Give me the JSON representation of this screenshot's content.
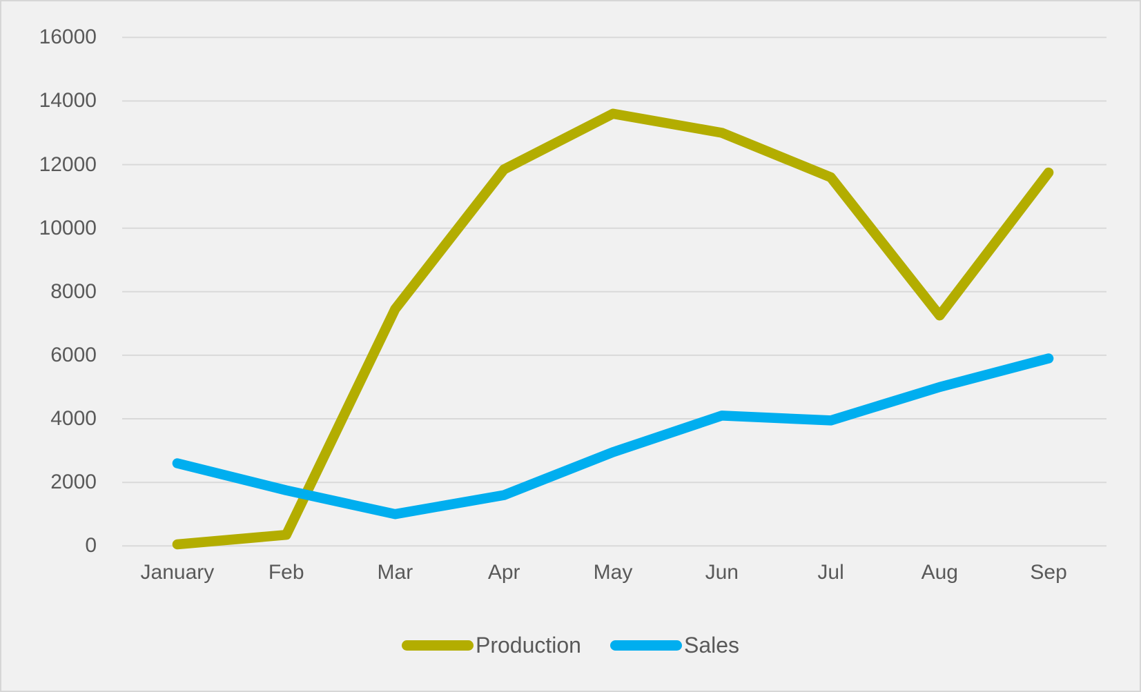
{
  "chart_data": {
    "type": "line",
    "title": "",
    "xlabel": "",
    "ylabel": "",
    "categories": [
      "January",
      "Feb",
      "Mar",
      "Apr",
      "May",
      "Jun",
      "Jul",
      "Aug",
      "Sep"
    ],
    "series": [
      {
        "name": "Production",
        "color": "#b3ad00",
        "values": [
          50,
          350,
          7450,
          11850,
          13600,
          13000,
          11600,
          7250,
          11750
        ]
      },
      {
        "name": "Sales",
        "color": "#00aeef",
        "values": [
          2600,
          1750,
          1000,
          1600,
          2950,
          4100,
          3950,
          5000,
          5900
        ]
      }
    ],
    "ylim": [
      0,
      16000
    ],
    "ytick_step": 2000,
    "yticks": [
      0,
      2000,
      4000,
      6000,
      8000,
      10000,
      12000,
      14000,
      16000
    ],
    "grid": "horizontal-only",
    "legend_position": "bottom-center"
  },
  "colors": {
    "panel_background": "#f1f1f1",
    "panel_border": "#d6d6d6",
    "gridline": "#d9d9d9",
    "axis_text": "#595959"
  }
}
